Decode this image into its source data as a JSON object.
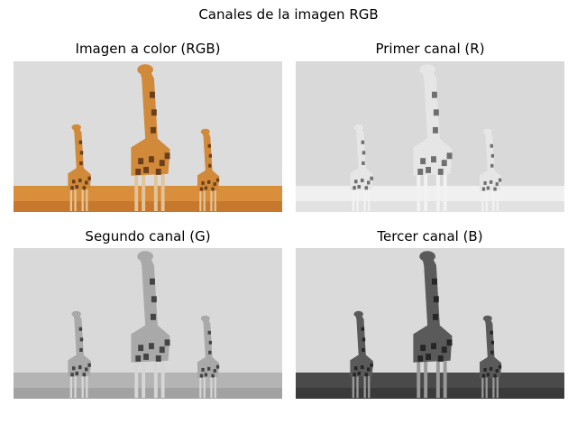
{
  "figure": {
    "title": "Canales de la imagen RGB",
    "panels": [
      {
        "title": "Imagen a color (RGB)",
        "mode": "color"
      },
      {
        "title": "Primer canal (R)",
        "mode": "r"
      },
      {
        "title": "Segundo canal (G)",
        "mode": "g"
      },
      {
        "title": "Tercer canal (B)",
        "mode": "b"
      }
    ]
  },
  "palette": {
    "color": {
      "sky": "#dcdcdc",
      "ground": "#d98e3c",
      "ground_dark": "#c8782c",
      "body": "#d08a3a",
      "spots": "#6b3f1b",
      "legs": "#e2c49a"
    },
    "r": {
      "sky": "#d9d9d9",
      "ground": "#f0f0f0",
      "ground_dark": "#e2e2e2",
      "body": "#e6e6e6",
      "spots": "#6f6f6f",
      "legs": "#f2f2f2"
    },
    "g": {
      "sky": "#d9d9d9",
      "ground": "#b4b4b4",
      "ground_dark": "#a2a2a2",
      "body": "#a9a9a9",
      "spots": "#444444",
      "legs": "#d6d6d6"
    },
    "b": {
      "sky": "#dadada",
      "ground": "#4a4a4a",
      "ground_dark": "#3a3a3a",
      "body": "#5a5a5a",
      "spots": "#262626",
      "legs": "#9a9a9a"
    }
  }
}
